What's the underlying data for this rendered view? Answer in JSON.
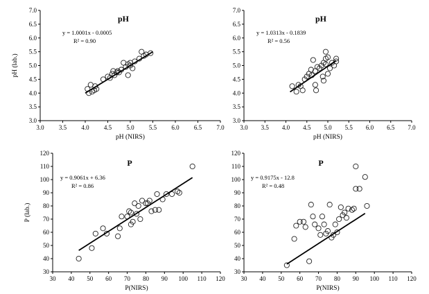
{
  "chart_data": [
    {
      "type": "scatter",
      "title": "pH",
      "xlabel": "pH (NIRS)",
      "ylabel": "pH (lab.)",
      "xlim": [
        3.0,
        7.0
      ],
      "ylim": [
        3.0,
        7.0
      ],
      "xticks": [
        "3.0",
        "3.5",
        "4.0",
        "4.5",
        "5.0",
        "5.5",
        "6.0",
        "6.5",
        "7.0"
      ],
      "yticks": [
        "3.0",
        "3.5",
        "4.0",
        "4.5",
        "5.0",
        "5.5",
        "6.0",
        "6.5",
        "7.0"
      ],
      "equation": "y = 1.0001x - 0.0005",
      "r2": "R² = 0.90",
      "trendline": {
        "slope": 1.0001,
        "intercept": -0.0005,
        "x_range": [
          4.0,
          5.5
        ]
      },
      "points": [
        [
          4.05,
          4.15
        ],
        [
          4.08,
          4.0
        ],
        [
          4.12,
          4.3
        ],
        [
          4.15,
          4.05
        ],
        [
          4.2,
          4.1
        ],
        [
          4.22,
          4.25
        ],
        [
          4.25,
          4.15
        ],
        [
          4.4,
          4.5
        ],
        [
          4.5,
          4.6
        ],
        [
          4.55,
          4.55
        ],
        [
          4.6,
          4.7
        ],
        [
          4.62,
          4.8
        ],
        [
          4.65,
          4.65
        ],
        [
          4.7,
          4.75
        ],
        [
          4.72,
          4.8
        ],
        [
          4.75,
          4.75
        ],
        [
          4.8,
          4.85
        ],
        [
          4.85,
          5.1
        ],
        [
          4.9,
          4.95
        ],
        [
          4.95,
          5.05
        ],
        [
          4.95,
          4.65
        ],
        [
          5.0,
          5.0
        ],
        [
          5.0,
          5.1
        ],
        [
          5.05,
          4.9
        ],
        [
          5.1,
          5.15
        ],
        [
          5.2,
          5.25
        ],
        [
          5.25,
          5.5
        ],
        [
          5.3,
          5.35
        ],
        [
          5.35,
          5.4
        ],
        [
          5.45,
          5.45
        ]
      ]
    },
    {
      "type": "scatter",
      "title": "pH",
      "xlabel": "pH (NIRS)",
      "ylabel": "",
      "xlim": [
        3.0,
        7.0
      ],
      "ylim": [
        3.0,
        7.0
      ],
      "xticks": [
        "3.0",
        "3.5",
        "4.0",
        "4.5",
        "5.0",
        "5.5",
        "6.0",
        "6.5",
        "7.0"
      ],
      "yticks": [
        "3.0",
        "3.5",
        "4.0",
        "4.5",
        "5.0",
        "5.5",
        "6.0",
        "6.5",
        "7.0"
      ],
      "equation": "y = 1.0313x - 0.1839",
      "r2": "R² = 0.56",
      "trendline": {
        "slope": 1.0313,
        "intercept": -0.1839,
        "x_range": [
          4.1,
          5.2
        ]
      },
      "points": [
        [
          4.15,
          4.25
        ],
        [
          4.25,
          4.05
        ],
        [
          4.3,
          4.3
        ],
        [
          4.35,
          4.25
        ],
        [
          4.4,
          4.1
        ],
        [
          4.45,
          4.5
        ],
        [
          4.5,
          4.6
        ],
        [
          4.55,
          4.7
        ],
        [
          4.6,
          4.85
        ],
        [
          4.62,
          4.65
        ],
        [
          4.65,
          5.2
        ],
        [
          4.7,
          4.8
        ],
        [
          4.7,
          4.3
        ],
        [
          4.72,
          4.1
        ],
        [
          4.75,
          4.95
        ],
        [
          4.8,
          4.9
        ],
        [
          4.85,
          5.0
        ],
        [
          4.88,
          4.6
        ],
        [
          4.9,
          5.1
        ],
        [
          4.9,
          4.45
        ],
        [
          4.95,
          5.25
        ],
        [
          4.95,
          5.05
        ],
        [
          4.95,
          5.5
        ],
        [
          5.0,
          5.3
        ],
        [
          5.0,
          4.7
        ],
        [
          5.05,
          4.9
        ],
        [
          5.1,
          5.1
        ],
        [
          5.15,
          5.0
        ],
        [
          5.2,
          5.15
        ],
        [
          5.2,
          5.25
        ]
      ]
    },
    {
      "type": "scatter",
      "title": "P",
      "xlabel": "P(NIRS)",
      "ylabel": "P (lab.)",
      "xlim": [
        30,
        120
      ],
      "ylim": [
        30,
        120
      ],
      "xticks": [
        "30",
        "40",
        "50",
        "60",
        "70",
        "80",
        "90",
        "100",
        "110",
        "120"
      ],
      "yticks": [
        "30",
        "40",
        "50",
        "60",
        "70",
        "80",
        "90",
        "100",
        "110",
        "120"
      ],
      "equation": "y = 0.9061x + 6.36",
      "r2": "R² = 0.86",
      "trendline": {
        "slope": 0.9061,
        "intercept": 6.36,
        "x_range": [
          44,
          105
        ]
      },
      "points": [
        [
          44,
          40
        ],
        [
          51,
          48
        ],
        [
          53,
          59
        ],
        [
          57,
          63
        ],
        [
          59,
          59
        ],
        [
          65,
          57
        ],
        [
          66,
          63
        ],
        [
          67,
          72
        ],
        [
          70,
          72
        ],
        [
          71,
          76
        ],
        [
          72,
          75
        ],
        [
          72,
          66
        ],
        [
          73,
          68
        ],
        [
          74,
          82
        ],
        [
          75,
          74
        ],
        [
          76,
          80
        ],
        [
          77,
          70
        ],
        [
          78,
          84
        ],
        [
          80,
          82
        ],
        [
          81,
          82
        ],
        [
          82,
          84
        ],
        [
          83,
          76
        ],
        [
          85,
          77
        ],
        [
          86,
          89
        ],
        [
          87,
          77
        ],
        [
          89,
          85
        ],
        [
          91,
          89
        ],
        [
          94,
          89
        ],
        [
          97,
          91
        ],
        [
          98,
          90
        ],
        [
          105,
          110
        ]
      ]
    },
    {
      "type": "scatter",
      "title": "P",
      "xlabel": "P(NIRS)",
      "ylabel": "",
      "xlim": [
        30,
        120
      ],
      "ylim": [
        30,
        120
      ],
      "xticks": [
        "30",
        "40",
        "50",
        "60",
        "70",
        "80",
        "90",
        "100",
        "110",
        "120"
      ],
      "yticks": [
        "30",
        "40",
        "50",
        "60",
        "70",
        "80",
        "90",
        "100",
        "110",
        "120"
      ],
      "equation": "y = 0.9175x - 12.8",
      "r2": "R² = 0.48",
      "trendline": {
        "slope": 0.9175,
        "intercept": -12.8,
        "x_range": [
          53,
          95
        ]
      },
      "points": [
        [
          53,
          35
        ],
        [
          57,
          55
        ],
        [
          58,
          65
        ],
        [
          60,
          68
        ],
        [
          62,
          68
        ],
        [
          63,
          64
        ],
        [
          65,
          38
        ],
        [
          66,
          81
        ],
        [
          67,
          72
        ],
        [
          68,
          66
        ],
        [
          70,
          63
        ],
        [
          71,
          58
        ],
        [
          72,
          72
        ],
        [
          73,
          66
        ],
        [
          74,
          59
        ],
        [
          75,
          61
        ],
        [
          76,
          81
        ],
        [
          77,
          56
        ],
        [
          78,
          58
        ],
        [
          79,
          66
        ],
        [
          80,
          60
        ],
        [
          81,
          70
        ],
        [
          82,
          79
        ],
        [
          83,
          73
        ],
        [
          84,
          75
        ],
        [
          85,
          71
        ],
        [
          86,
          78
        ],
        [
          88,
          77
        ],
        [
          89,
          78
        ],
        [
          90,
          93
        ],
        [
          90,
          110
        ],
        [
          92,
          93
        ],
        [
          95,
          102
        ],
        [
          96,
          80
        ]
      ]
    }
  ]
}
